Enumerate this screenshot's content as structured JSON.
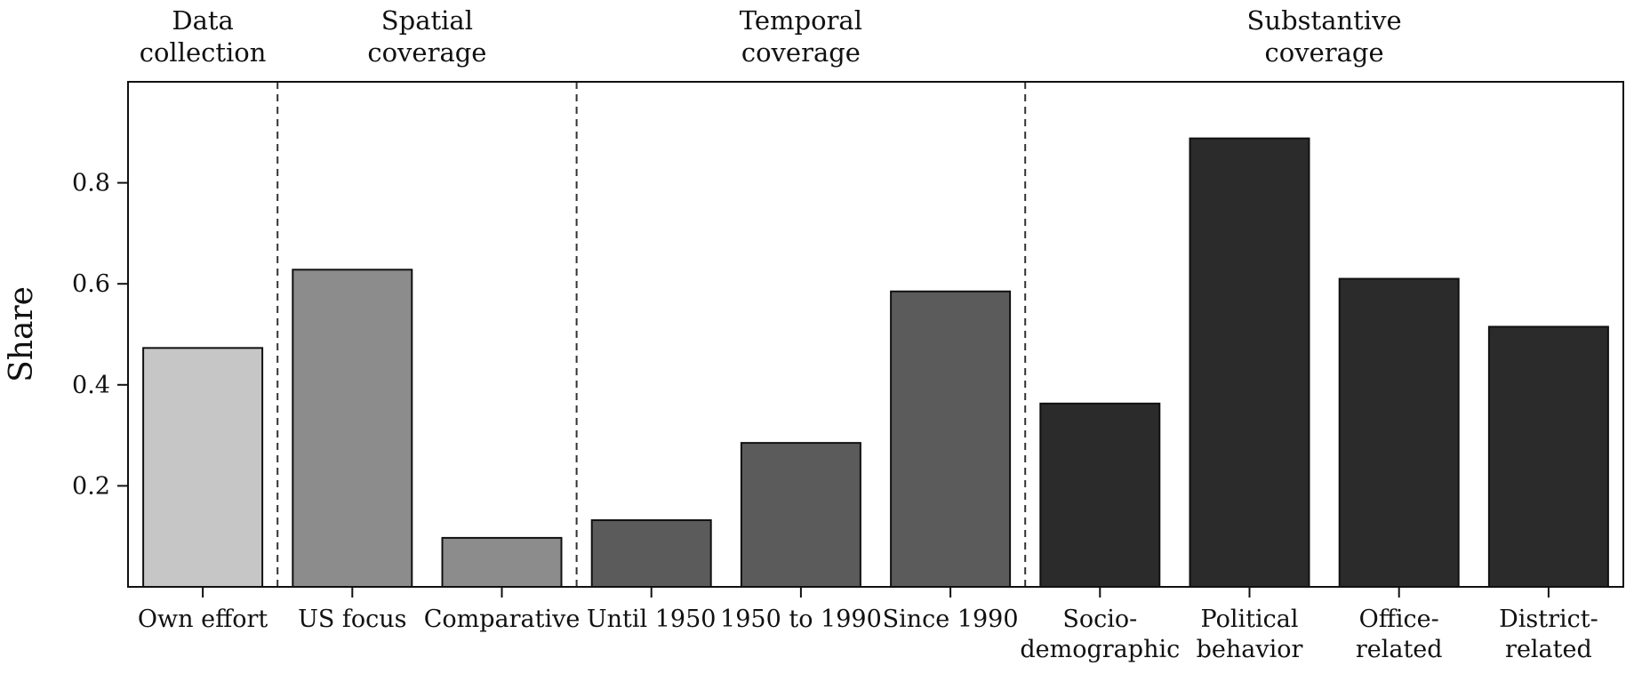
{
  "chart_data": {
    "type": "bar",
    "ylabel": "Share",
    "xlabel": "",
    "ylim": [
      0,
      1
    ],
    "yticks": [
      0.2,
      0.4,
      0.6,
      0.8
    ],
    "ytick_labels": [
      "0.2",
      "0.4",
      "0.6",
      "0.8"
    ],
    "grid": false,
    "categories": [
      {
        "lines": [
          "Own effort"
        ],
        "value": 0.473,
        "color": "#c6c6c6"
      },
      {
        "lines": [
          "US focus"
        ],
        "value": 0.628,
        "color": "#8c8c8c"
      },
      {
        "lines": [
          "Comparative"
        ],
        "value": 0.097,
        "color": "#8c8c8c"
      },
      {
        "lines": [
          "Until 1950"
        ],
        "value": 0.132,
        "color": "#5b5b5b"
      },
      {
        "lines": [
          "1950 to 1990"
        ],
        "value": 0.285,
        "color": "#5b5b5b"
      },
      {
        "lines": [
          "Since 1990"
        ],
        "value": 0.585,
        "color": "#5b5b5b"
      },
      {
        "lines": [
          "Socio-",
          "demographic"
        ],
        "value": 0.363,
        "color": "#2b2b2b"
      },
      {
        "lines": [
          "Political",
          "behavior"
        ],
        "value": 0.888,
        "color": "#2b2b2b"
      },
      {
        "lines": [
          "Office-",
          "related"
        ],
        "value": 0.61,
        "color": "#2b2b2b"
      },
      {
        "lines": [
          "District-",
          "related"
        ],
        "value": 0.515,
        "color": "#2b2b2b"
      }
    ],
    "groups": [
      {
        "lines": [
          "Data",
          "collection"
        ],
        "start": 0,
        "end": 0
      },
      {
        "lines": [
          "Spatial",
          "coverage"
        ],
        "start": 1,
        "end": 2
      },
      {
        "lines": [
          "Temporal",
          "coverage"
        ],
        "start": 3,
        "end": 5
      },
      {
        "lines": [
          "Substantive",
          "coverage"
        ],
        "start": 6,
        "end": 9
      }
    ]
  }
}
